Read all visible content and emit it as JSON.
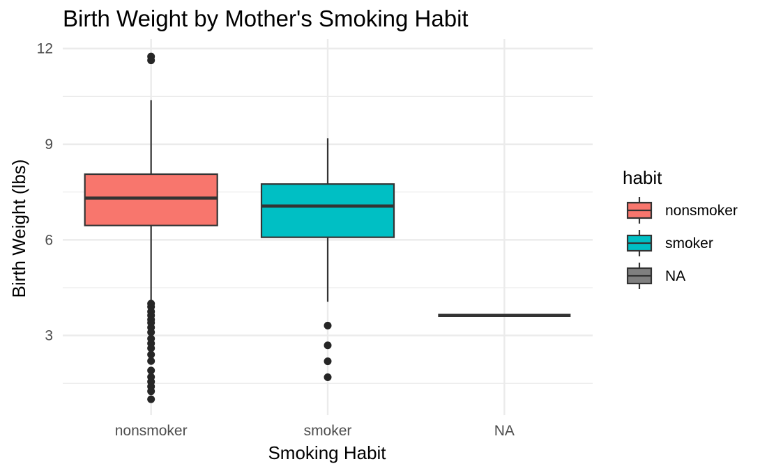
{
  "chart_data": {
    "type": "box",
    "title": "Birth Weight by Mother's Smoking Habit",
    "xlabel": "Smoking Habit",
    "ylabel": "Birth Weight (lbs)",
    "categories": [
      "nonsmoker",
      "smoker",
      "NA"
    ],
    "ylim": [
      0.5,
      12.3
    ],
    "yticks": [
      3,
      6,
      9,
      12
    ],
    "yminor": [
      1.5,
      4.5,
      7.5,
      10.5
    ],
    "grid": true,
    "legend": {
      "title": "habit",
      "position": "right",
      "entries": [
        "nonsmoker",
        "smoker",
        "NA"
      ]
    },
    "colors": {
      "nonsmoker": "#F8766D",
      "smoker": "#00BFC4",
      "NA": "#7F7F7F",
      "outline": "#333333",
      "outlier": "#262626",
      "grid": "#EBEBEB"
    },
    "boxes": [
      {
        "category": "nonsmoker",
        "lower_whisker": 4.1,
        "q1": 6.45,
        "median": 7.31,
        "q3": 8.06,
        "upper_whisker": 10.38,
        "outliers": [
          11.75,
          11.63,
          4.0,
          3.9,
          3.75,
          3.63,
          3.5,
          3.4,
          3.25,
          3.1,
          2.9,
          2.75,
          2.6,
          2.4,
          2.2,
          1.9,
          1.7,
          1.55,
          1.4,
          1.25,
          1.0
        ]
      },
      {
        "category": "smoker",
        "lower_whisker": 4.06,
        "q1": 6.08,
        "median": 7.06,
        "q3": 7.75,
        "upper_whisker": 9.19,
        "outliers": [
          3.31,
          2.69,
          2.19,
          1.69
        ]
      },
      {
        "category": "NA",
        "lower_whisker": 3.63,
        "q1": 3.63,
        "median": 3.63,
        "q3": 3.63,
        "upper_whisker": 3.63,
        "outliers": []
      }
    ]
  }
}
